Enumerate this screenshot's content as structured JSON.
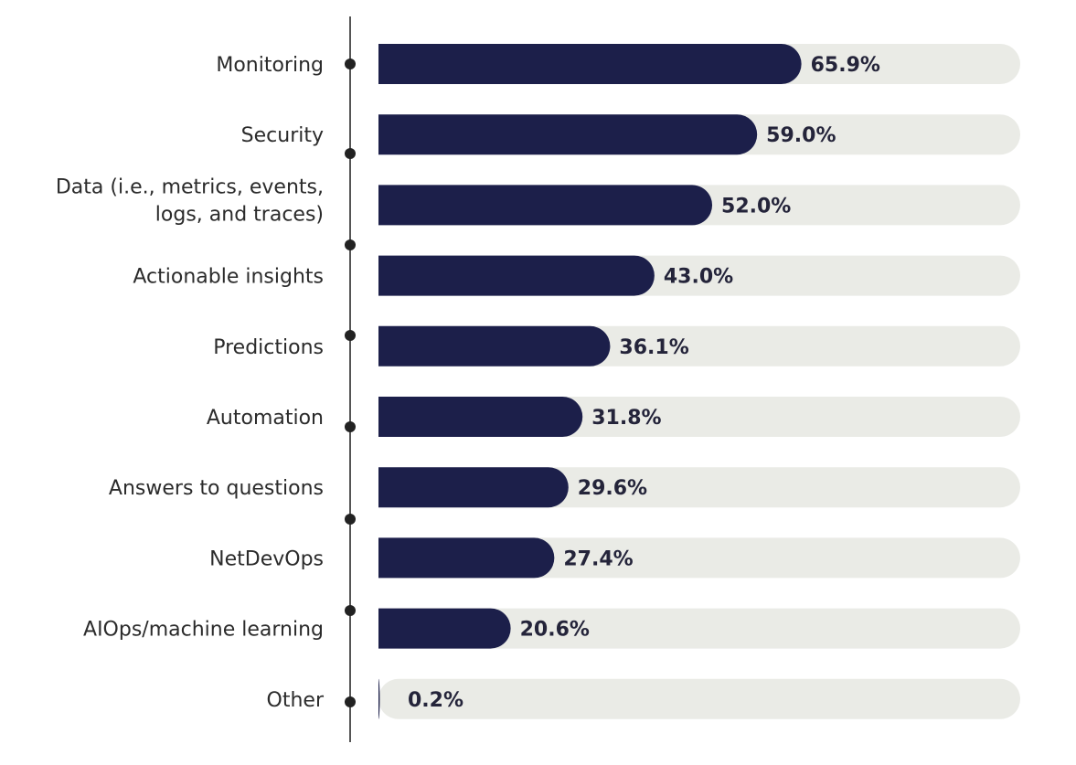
{
  "chart_data": {
    "type": "bar",
    "orientation": "horizontal",
    "categories": [
      [
        "Monitoring"
      ],
      [
        "Security"
      ],
      [
        "Data (i.e., metrics, events,",
        "logs, and traces)"
      ],
      [
        "Actionable insights"
      ],
      [
        "Predictions"
      ],
      [
        "Automation"
      ],
      [
        "Answers to questions"
      ],
      [
        "NetDevOps"
      ],
      [
        "AIOps/machine learning"
      ],
      [
        "Other"
      ]
    ],
    "values": [
      65.9,
      59.0,
      52.0,
      43.0,
      36.1,
      31.8,
      29.6,
      27.4,
      20.6,
      0.2
    ],
    "value_labels": [
      "65.9%",
      "59.0%",
      "52.0%",
      "43.0%",
      "36.1%",
      "31.8%",
      "29.6%",
      "27.4%",
      "20.6%",
      "0.2%"
    ],
    "xlim": [
      0,
      100
    ],
    "grid": false,
    "legend": "none",
    "colors": {
      "bar": "#1c1f4a",
      "track": "#eaebe6",
      "axis_line": "#555555",
      "axis_dot": "#222222",
      "label_text": "#2b2b2b",
      "value_text": "#24243a"
    }
  }
}
